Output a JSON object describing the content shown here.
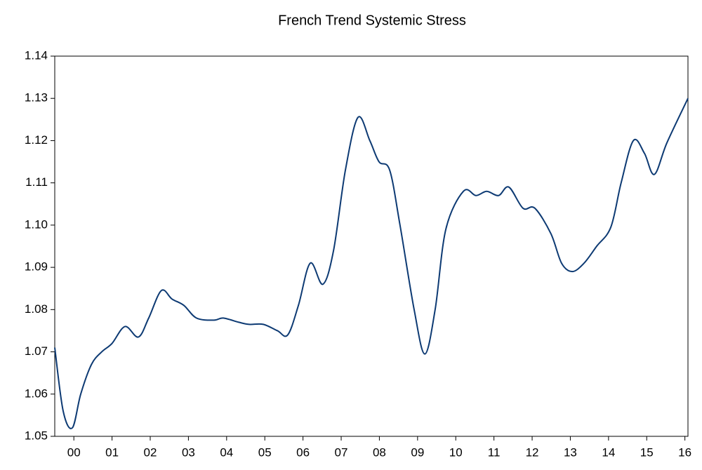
{
  "chart_data": {
    "type": "line",
    "title": "French Trend Systemic Stress",
    "x": [
      0,
      0.22,
      0.46,
      0.68,
      0.96,
      1.23,
      1.5,
      1.84,
      2.19,
      2.46,
      2.79,
      3.07,
      3.38,
      3.71,
      4.17,
      4.41,
      4.82,
      5.09,
      5.46,
      5.83,
      6.1,
      6.38,
      6.69,
      7.02,
      7.3,
      7.61,
      7.94,
      8.25,
      8.49,
      8.77,
      9.04,
      9.41,
      9.69,
      9.96,
      10.24,
      10.7,
      11.03,
      11.31,
      11.62,
      11.89,
      12.26,
      12.57,
      12.99,
      13.27,
      13.55,
      13.86,
      14.19,
      14.56,
      14.83,
      15.15,
      15.44,
      15.7,
      16.03,
      16.58
    ],
    "series": [
      {
        "color": "#0d3a73",
        "values": [
          1.071,
          1.056,
          1.052,
          1.06,
          1.067,
          1.07,
          1.072,
          1.076,
          1.0735,
          1.078,
          1.0845,
          1.0825,
          1.081,
          1.078,
          1.0775,
          1.078,
          1.077,
          1.0765,
          1.0765,
          1.075,
          1.074,
          1.081,
          1.091,
          1.086,
          1.094,
          1.113,
          1.1255,
          1.12,
          1.115,
          1.113,
          1.1,
          1.08,
          1.0695,
          1.08,
          1.099,
          1.108,
          1.107,
          1.108,
          1.107,
          1.109,
          1.104,
          1.104,
          1.098,
          1.091,
          1.089,
          1.091,
          1.095,
          1.0995,
          1.11,
          1.12,
          1.117,
          1.112,
          1.1195,
          1.13
        ]
      }
    ],
    "xlim": [
      0,
      16.58
    ],
    "xticks": [
      {
        "value": 0.5,
        "label": "00"
      },
      {
        "value": 1.5,
        "label": "01"
      },
      {
        "value": 2.5,
        "label": "02"
      },
      {
        "value": 3.5,
        "label": "03"
      },
      {
        "value": 4.5,
        "label": "04"
      },
      {
        "value": 5.5,
        "label": "05"
      },
      {
        "value": 6.5,
        "label": "06"
      },
      {
        "value": 7.5,
        "label": "07"
      },
      {
        "value": 8.5,
        "label": "08"
      },
      {
        "value": 9.5,
        "label": "09"
      },
      {
        "value": 10.5,
        "label": "10"
      },
      {
        "value": 11.5,
        "label": "11"
      },
      {
        "value": 12.5,
        "label": "12"
      },
      {
        "value": 13.5,
        "label": "13"
      },
      {
        "value": 14.5,
        "label": "14"
      },
      {
        "value": 15.5,
        "label": "15"
      },
      {
        "value": 16.5,
        "label": "16"
      }
    ],
    "ylim": [
      1.05,
      1.14
    ],
    "yticks": [
      1.05,
      1.06,
      1.07,
      1.08,
      1.09,
      {
        "value": 1.1,
        "label": "1.10"
      },
      1.11,
      1.12,
      1.13,
      1.14
    ],
    "grid": false
  }
}
